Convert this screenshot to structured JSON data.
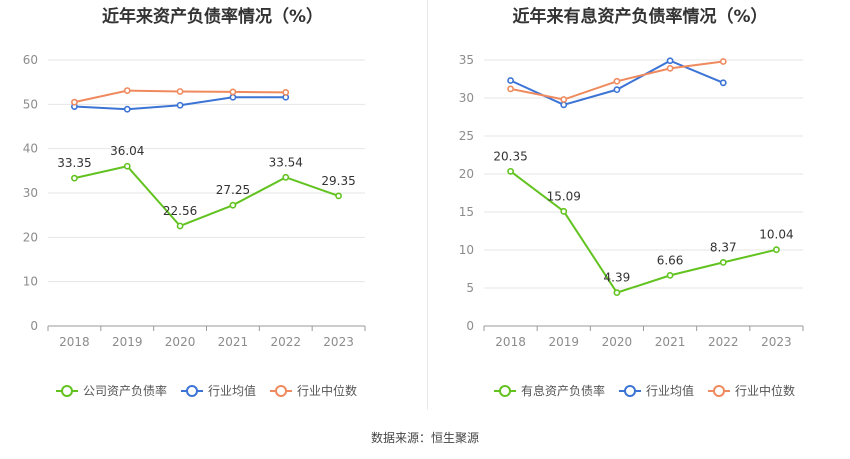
{
  "source_label": "数据来源：恒生聚源",
  "colors": {
    "company": "#62c320",
    "avg": "#3c74d6",
    "median": "#ef8a5e",
    "grid": "#e6e6e6",
    "axis": "#8c8c8c"
  },
  "chart_data": [
    {
      "type": "line",
      "title": "近年来资产负债率情况（%）",
      "categories": [
        "2018",
        "2019",
        "2020",
        "2021",
        "2022",
        "2023"
      ],
      "ylim": [
        0,
        60
      ],
      "yticks": [
        0,
        10,
        20,
        30,
        40,
        50,
        60
      ],
      "grid": true,
      "legend_position": "bottom",
      "series": [
        {
          "name": "公司资产负债率",
          "values": [
            33.35,
            36.04,
            22.56,
            27.25,
            33.54,
            29.35
          ],
          "labels": [
            "33.35",
            "36.04",
            "22.56",
            "27.25",
            "33.54",
            "29.35"
          ]
        },
        {
          "name": "行业均值",
          "values": [
            49.5,
            48.9,
            49.8,
            51.6,
            51.6,
            null
          ]
        },
        {
          "name": "行业中位数",
          "values": [
            50.5,
            53.1,
            52.9,
            52.8,
            52.7,
            null
          ]
        }
      ]
    },
    {
      "type": "line",
      "title": "近年来有息资产负债率情况（%）",
      "categories": [
        "2018",
        "2019",
        "2020",
        "2021",
        "2022",
        "2023"
      ],
      "ylim": [
        0,
        35
      ],
      "yticks": [
        0,
        5,
        10,
        15,
        20,
        25,
        30,
        35
      ],
      "grid": true,
      "legend_position": "bottom",
      "series": [
        {
          "name": "有息资产负债率",
          "values": [
            20.35,
            15.09,
            4.39,
            6.66,
            8.37,
            10.04
          ],
          "labels": [
            "20.35",
            "15.09",
            "4.39",
            "6.66",
            "8.37",
            "10.04"
          ]
        },
        {
          "name": "行业均值",
          "values": [
            32.3,
            29.1,
            31.1,
            34.9,
            32.0,
            null
          ]
        },
        {
          "name": "行业中位数",
          "values": [
            31.2,
            29.8,
            32.2,
            33.9,
            34.8,
            null
          ]
        }
      ]
    }
  ]
}
